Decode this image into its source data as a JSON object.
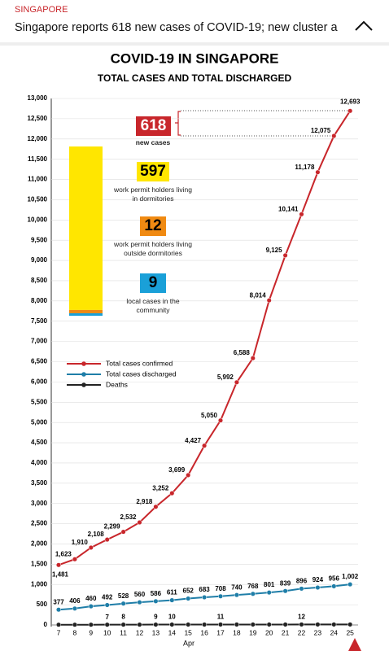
{
  "header": {
    "section": "SINGAPORE",
    "headline": "Singapore reports 618 new cases of COVID-19; new cluster a"
  },
  "chart_data": {
    "type": "line",
    "title": "COVID-19 IN SINGAPORE",
    "subtitle": "TOTAL CASES AND TOTAL DISCHARGED",
    "categories": [
      "7",
      "8",
      "9",
      "10",
      "11",
      "12",
      "13",
      "14",
      "15",
      "16",
      "17",
      "18",
      "19",
      "20",
      "21",
      "22",
      "23",
      "24",
      "25"
    ],
    "xlabel": "Apr",
    "series": [
      {
        "name": "Total cases confirmed",
        "color": "#c8262b",
        "values": [
          1481,
          1623,
          1910,
          2108,
          2299,
          2532,
          2918,
          3252,
          3699,
          4427,
          5050,
          5992,
          6588,
          8014,
          9125,
          10141,
          11178,
          12075,
          12693
        ],
        "value_labels": [
          "1,481",
          "1,623",
          "1,910",
          "2,108",
          "2,299",
          "2,532",
          "2,918",
          "3,252",
          "3,699",
          "4,427",
          "5,050",
          "5,992",
          "6,588",
          "8,014",
          "9,125",
          "10,141",
          "11,178",
          "12,075",
          "12,693"
        ]
      },
      {
        "name": "Total cases discharged",
        "color": "#1f7ea8",
        "values": [
          377,
          406,
          460,
          492,
          528,
          560,
          586,
          611,
          652,
          683,
          708,
          740,
          768,
          801,
          839,
          896,
          924,
          956,
          1002
        ],
        "value_labels": [
          "377",
          "406",
          "460",
          "492",
          "528",
          "560",
          "586",
          "611",
          "652",
          "683",
          "708",
          "740",
          "768",
          "801",
          "839",
          "896",
          "924",
          "956",
          "1,002"
        ]
      },
      {
        "name": "Deaths",
        "color": "#222222",
        "values": [
          6,
          6,
          6,
          7,
          8,
          8,
          9,
          10,
          10,
          10,
          11,
          11,
          11,
          11,
          11,
          12,
          12,
          12,
          12
        ],
        "value_labels": [
          null,
          null,
          null,
          "7",
          "8",
          null,
          "9",
          "10",
          null,
          null,
          "11",
          null,
          null,
          null,
          null,
          "12",
          null,
          null,
          null
        ]
      }
    ],
    "ylim": [
      0,
      13000
    ],
    "yticks": [
      0,
      500,
      {
        "value": 1000,
        "label": "1,000"
      },
      {
        "value": 1500,
        "label": "1,500"
      },
      {
        "value": 2000,
        "label": "2,000"
      },
      {
        "value": 2500,
        "label": "2,500"
      },
      {
        "value": 3000,
        "label": "3,000"
      },
      {
        "value": 3500,
        "label": "3,500"
      },
      {
        "value": 4000,
        "label": "4,000"
      },
      {
        "value": 4500,
        "label": "4,500"
      },
      {
        "value": 5000,
        "label": "5,000"
      },
      {
        "value": 5500,
        "label": "5,500"
      },
      {
        "value": 6000,
        "label": "6,000"
      },
      {
        "value": 6500,
        "label": "6,500"
      },
      {
        "value": 7000,
        "label": "7,000"
      },
      {
        "value": 7500,
        "label": "7,500"
      },
      {
        "value": 8000,
        "label": "8,000"
      },
      {
        "value": 8500,
        "label": "8,500"
      },
      {
        "value": 9000,
        "label": "9,000"
      },
      {
        "value": 9500,
        "label": "9,500"
      },
      {
        "value": 10000,
        "label": "10,000"
      },
      {
        "value": 10500,
        "label": "10,500"
      },
      {
        "value": 11000,
        "label": "11,000"
      },
      {
        "value": 11500,
        "label": "11,500"
      },
      {
        "value": 12000,
        "label": "12,000"
      },
      {
        "value": 12500,
        "label": "12,500"
      },
      {
        "value": 13000,
        "label": "13,000"
      }
    ],
    "grid": true,
    "breakdown": {
      "total": 618,
      "total_label": "new cases",
      "segments": [
        {
          "value": 597,
          "label": "work permit holders living in dormitories",
          "color": "#ffe600"
        },
        {
          "value": 12,
          "label": "work permit holders living outside dormitories",
          "color": "#f08a12"
        },
        {
          "value": 9,
          "label": "local cases in the community",
          "color": "#1aa0d8"
        }
      ]
    }
  }
}
